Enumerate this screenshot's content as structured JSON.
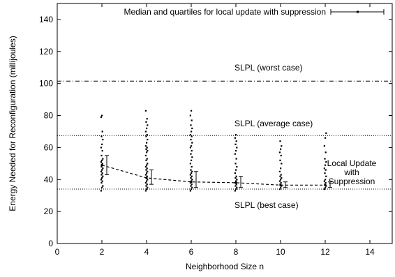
{
  "chart_data": {
    "type": "scatter",
    "title": "",
    "xlabel": "Neighborhood Size n",
    "ylabel": "Energy Needed for Reconfiguration (millijoules)",
    "xlim": [
      0,
      15
    ],
    "ylim": [
      0,
      150
    ],
    "xticks": [
      0,
      2,
      4,
      6,
      8,
      10,
      12,
      14
    ],
    "yticks": [
      0,
      20,
      40,
      60,
      80,
      100,
      120,
      140
    ],
    "xtick_labels": [
      "0",
      "2",
      "4",
      "6",
      "8",
      "10",
      "12",
      "14"
    ],
    "ytick_labels": [
      "0",
      "20",
      "40",
      "60",
      "80",
      "100",
      "120",
      "140"
    ],
    "grid": false,
    "legend": {
      "placement": "top-right",
      "entries": [
        {
          "label": "Median and quartiles for local update with suppression",
          "marker": "errorbar"
        }
      ]
    },
    "reference_lines": [
      {
        "label": "SLPL (worst case)",
        "y": 101.5,
        "style": "dashdot"
      },
      {
        "label": "SLPL (average case)",
        "y": 67.5,
        "style": "dotted"
      },
      {
        "label": "SLPL (best case)",
        "y": 34,
        "style": "dotted"
      }
    ],
    "curve_label": "Local Update\nwith\nSuppression",
    "median_quartiles": [
      {
        "x": 2,
        "median": 49,
        "q1": 43,
        "q3": 55
      },
      {
        "x": 4,
        "median": 41,
        "q1": 37,
        "q3": 46
      },
      {
        "x": 6,
        "median": 38.5,
        "q1": 35,
        "q3": 45
      },
      {
        "x": 8,
        "median": 38,
        "q1": 35,
        "q3": 42
      },
      {
        "x": 10,
        "median": 36.5,
        "q1": 35,
        "q3": 38.5
      },
      {
        "x": 12,
        "median": 36.5,
        "q1": 35,
        "q3": 38.5
      }
    ],
    "samples": [
      {
        "x": 2,
        "y": [
          33,
          35,
          36,
          38,
          39,
          40,
          41,
          42,
          43,
          44,
          45,
          46,
          47,
          48,
          50,
          51,
          52,
          53,
          55,
          58,
          60,
          62,
          65,
          67,
          70,
          79,
          80
        ]
      },
      {
        "x": 4,
        "y": [
          33,
          34,
          35,
          36,
          37,
          38,
          39,
          40,
          41,
          42,
          43,
          44,
          45,
          46,
          47,
          48,
          49,
          50,
          52,
          53,
          55,
          57,
          58,
          59,
          60,
          61,
          63,
          65,
          67,
          68,
          70,
          72,
          74,
          76,
          78,
          83
        ]
      },
      {
        "x": 6,
        "y": [
          33,
          34,
          35,
          36,
          37,
          38,
          39,
          40,
          41,
          42,
          43,
          44,
          45,
          46,
          48,
          50,
          52,
          54,
          56,
          58,
          60,
          61,
          63,
          65,
          67,
          68,
          70,
          72,
          74,
          77,
          80,
          83
        ]
      },
      {
        "x": 8,
        "y": [
          33,
          34,
          35,
          36,
          37,
          38,
          39,
          40,
          41,
          42,
          44,
          46,
          48,
          50,
          53,
          56,
          58,
          60,
          62,
          64,
          66,
          68
        ]
      },
      {
        "x": 10,
        "y": [
          34,
          35,
          36,
          37,
          38,
          39,
          40,
          41,
          42,
          43,
          45,
          47,
          50,
          52,
          55,
          57,
          59,
          61,
          64
        ]
      },
      {
        "x": 12,
        "y": [
          34,
          35,
          36,
          37,
          38,
          39,
          40,
          42,
          44,
          46,
          47,
          49,
          51,
          53,
          57,
          61,
          66,
          69
        ]
      }
    ]
  }
}
